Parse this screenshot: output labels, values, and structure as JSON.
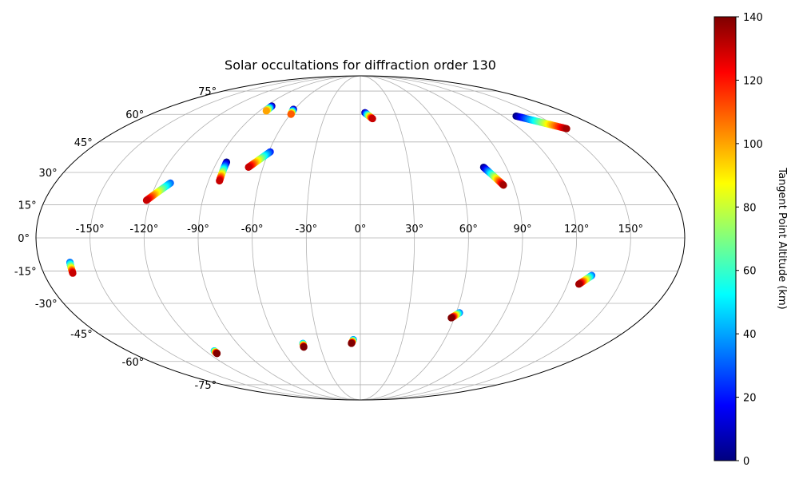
{
  "chart_data": {
    "type": "scatter",
    "projection": "mollweide",
    "title": "Solar occultations for diffraction order 130",
    "x_ticks": [
      "-150°",
      "-120°",
      "-90°",
      "-60°",
      "-30°",
      "0°",
      "30°",
      "60°",
      "90°",
      "120°",
      "150°"
    ],
    "x_tick_values": [
      -150,
      -120,
      -90,
      -60,
      -30,
      0,
      30,
      60,
      90,
      120,
      150
    ],
    "y_ticks": [
      "-75°",
      "-60°",
      "-45°",
      "-30°",
      "-15°",
      "0°",
      "15°",
      "30°",
      "45°",
      "60°",
      "75°"
    ],
    "y_tick_values": [
      -75,
      -60,
      -45,
      -30,
      -15,
      0,
      15,
      30,
      45,
      60,
      75
    ],
    "grid": true,
    "colorbar": {
      "label": "Tangent Point Altitude (km)",
      "range": [
        0,
        140
      ],
      "ticks": [
        "0",
        "20",
        "40",
        "60",
        "80",
        "100",
        "120",
        "140"
      ],
      "tick_values": [
        0,
        20,
        40,
        60,
        80,
        100,
        120,
        140
      ],
      "colormap": "jet"
    },
    "tracks": [
      {
        "lon_start": -84.5,
        "lat_start": 65.0,
        "lon_end": -84.0,
        "lat_end": 62.0,
        "alt_start": 0,
        "alt_end": 100
      },
      {
        "lon_start": -61.0,
        "lat_start": 63.0,
        "lon_end": -59.5,
        "lat_end": 60.0,
        "alt_start": 0,
        "alt_end": 110
      },
      {
        "lon_start": 4.0,
        "lat_start": 61.0,
        "lon_end": 10.0,
        "lat_end": 57.5,
        "alt_start": 0,
        "alt_end": 130
      },
      {
        "lon_start": 131.0,
        "lat_start": 59.0,
        "lon_end": 155.0,
        "lat_end": 52.0,
        "alt_start": 0,
        "alt_end": 135
      },
      {
        "lon_start": -84.0,
        "lat_start": 35.0,
        "lon_end": -83.5,
        "lat_end": 26.0,
        "alt_start": 0,
        "alt_end": 130
      },
      {
        "lon_start": -59.0,
        "lat_start": 40.0,
        "lon_end": -69.0,
        "lat_end": 32.5,
        "alt_start": 20,
        "alt_end": 130
      },
      {
        "lon_start": -112.0,
        "lat_start": 25.0,
        "lon_end": -122.0,
        "lat_end": 17.0,
        "alt_start": 30,
        "alt_end": 130
      },
      {
        "lon_start": 76.0,
        "lat_start": 32.5,
        "lon_end": 84.0,
        "lat_end": 24.0,
        "alt_start": 0,
        "alt_end": 135
      },
      {
        "lon_start": -163.0,
        "lat_start": -11.0,
        "lon_end": -163.5,
        "lat_end": -16.0,
        "alt_start": 30,
        "alt_end": 130
      },
      {
        "lon_start": 132.0,
        "lat_start": -17.0,
        "lon_end": 126.5,
        "lat_end": -21.0,
        "alt_start": 30,
        "alt_end": 135
      },
      {
        "lon_start": 62.0,
        "lat_start": -34.5,
        "lon_end": 58.0,
        "lat_end": -37.0,
        "alt_start": 30,
        "alt_end": 140
      },
      {
        "lon_start": -5.0,
        "lat_start": -48.0,
        "lon_end": -6.5,
        "lat_end": -50.0,
        "alt_start": 30,
        "alt_end": 140
      },
      {
        "lon_start": -42.0,
        "lat_start": -50.0,
        "lon_end": -42.5,
        "lat_end": -52.0,
        "alt_start": 40,
        "alt_end": 140
      },
      {
        "lon_start": -113.0,
        "lat_start": -54.0,
        "lon_end": -113.5,
        "lat_end": -55.5,
        "alt_start": 40,
        "alt_end": 140
      }
    ]
  }
}
